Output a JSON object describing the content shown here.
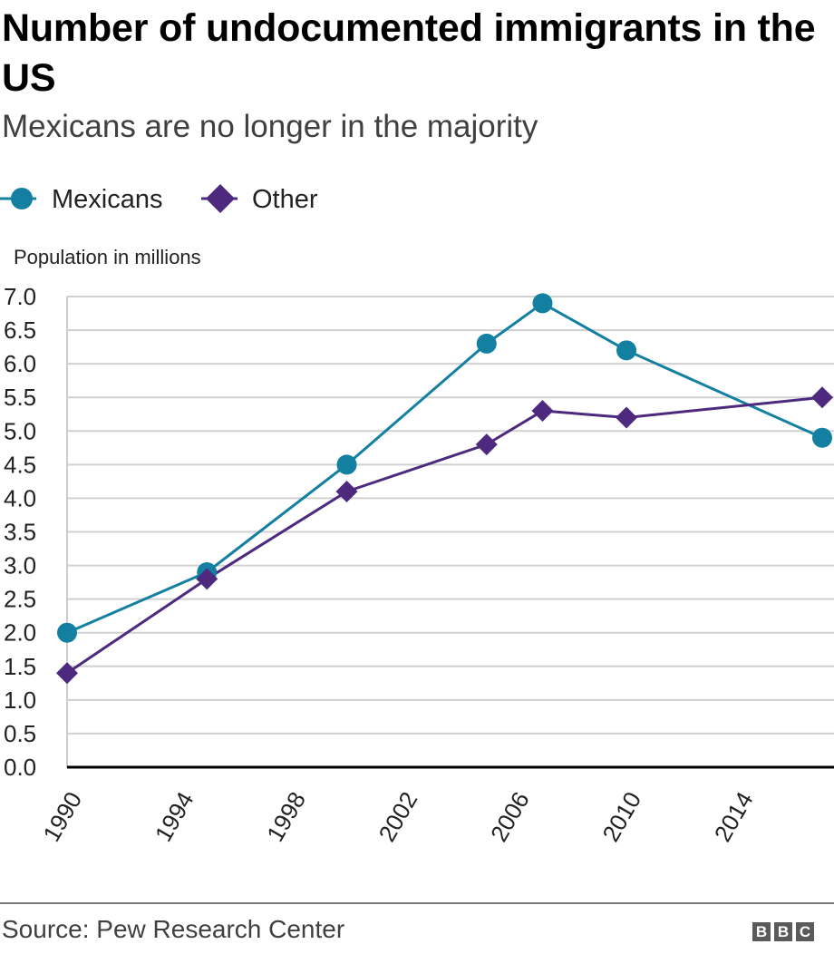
{
  "header": {
    "title": "Number of undocumented immigrants in the US",
    "subtitle": "Mexicans are no longer in the majority"
  },
  "legend": {
    "items": [
      {
        "label": "Mexicans",
        "marker": "circle",
        "color": "#1380A1"
      },
      {
        "label": "Other",
        "marker": "diamond",
        "color": "#4D2A7E"
      }
    ]
  },
  "footer": {
    "source": "Source: Pew Research Center",
    "logo_letters": [
      "B",
      "B",
      "C"
    ]
  },
  "chart_data": {
    "type": "line",
    "title": "Number of undocumented immigrants in the US",
    "subtitle": "Mexicans are no longer in the majority",
    "ylabel": "Population in millions",
    "xlabel": "",
    "ylim": [
      0,
      7
    ],
    "xlim": [
      1990,
      2017
    ],
    "yticks": [
      0.0,
      0.5,
      1.0,
      1.5,
      2.0,
      2.5,
      3.0,
      3.5,
      4.0,
      4.5,
      5.0,
      5.5,
      6.0,
      6.5,
      7.0
    ],
    "ytick_labels": [
      "0.0",
      "0.5",
      "1.0",
      "1.5",
      "2.0",
      "2.5",
      "3.0",
      "3.5",
      "4.0",
      "4.5",
      "5.0",
      "5.5",
      "6.0",
      "6.5",
      "7.0"
    ],
    "xticks": [
      1990,
      1994,
      1998,
      2002,
      2006,
      2010,
      2014
    ],
    "xtick_labels": [
      "1990",
      "1994",
      "1998",
      "2002",
      "2006",
      "2010",
      "2014"
    ],
    "grid": "horizontal",
    "legend_position": "top-left",
    "x": [
      1990,
      1995,
      2000,
      2005,
      2007,
      2010,
      2017
    ],
    "series": [
      {
        "name": "Mexicans",
        "marker": "circle",
        "color": "#1380A1",
        "values": [
          2.0,
          2.9,
          4.5,
          6.3,
          6.9,
          6.2,
          4.9
        ]
      },
      {
        "name": "Other",
        "marker": "diamond",
        "color": "#4D2A7E",
        "values": [
          1.4,
          2.8,
          4.1,
          4.8,
          5.3,
          5.2,
          5.5
        ]
      }
    ],
    "source": "Source: Pew Research Center"
  }
}
